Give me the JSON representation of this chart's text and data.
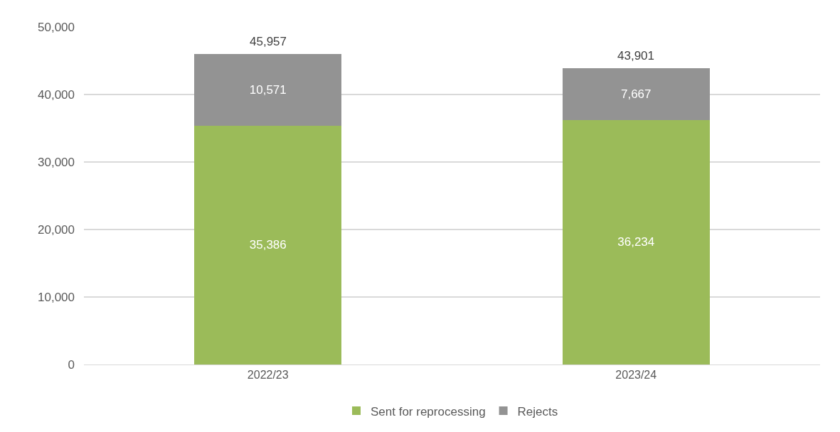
{
  "chart_data": {
    "type": "bar",
    "stacked": true,
    "categories": [
      "2022/23",
      "2023/24"
    ],
    "series": [
      {
        "name": "Sent for reprocessing",
        "color": "#9bbb59",
        "values": [
          35386,
          36234
        ],
        "value_labels": [
          "35,386",
          "36,234"
        ]
      },
      {
        "name": "Rejects",
        "color": "#939393",
        "values": [
          10571,
          7667
        ],
        "value_labels": [
          "10,571",
          "7,667"
        ]
      }
    ],
    "ylim": [
      0,
      50000
    ],
    "yticks": [
      0,
      {
        "value": 10000,
        "label": "10,000"
      },
      {
        "value": 20000,
        "label": "20,000"
      },
      {
        "value": 30000,
        "label": "30,000"
      },
      {
        "value": 40000,
        "label": "40,000"
      },
      {
        "value": 50000,
        "label": "50,000"
      }
    ],
    "grid": "y",
    "legend": "bottom",
    "totals": [
      "45,957",
      "43,901"
    ]
  }
}
